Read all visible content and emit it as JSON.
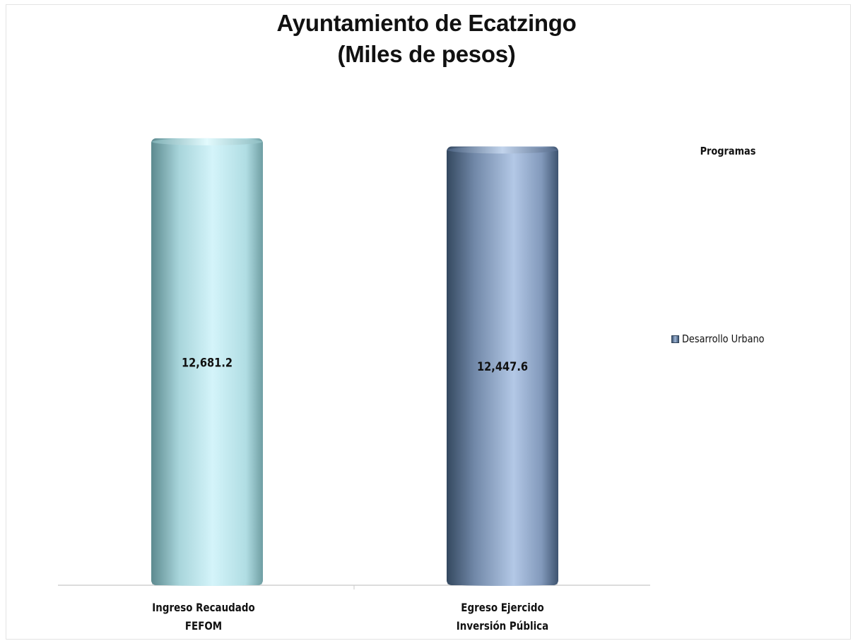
{
  "chart_data": {
    "type": "bar",
    "title": "Ayuntamiento de Ecatzingo",
    "subtitle": "(Miles de pesos)",
    "categories": [
      [
        "Ingreso Recaudado",
        "FEFOM"
      ],
      [
        "Egreso Ejercido",
        "Inversión Pública"
      ]
    ],
    "series": [
      {
        "name": "Desarrollo Urbano",
        "values": [
          12681.2,
          12447.6
        ]
      }
    ],
    "data_labels": [
      "12,681.2",
      "12,447.6"
    ],
    "bar_colors": [
      "#c7eef4",
      "#8ea6c9"
    ],
    "legend": {
      "title": "Programas",
      "position": "right"
    },
    "ylim": [
      0,
      13800
    ],
    "grid": false,
    "bar_style": "3d-cylinder"
  }
}
